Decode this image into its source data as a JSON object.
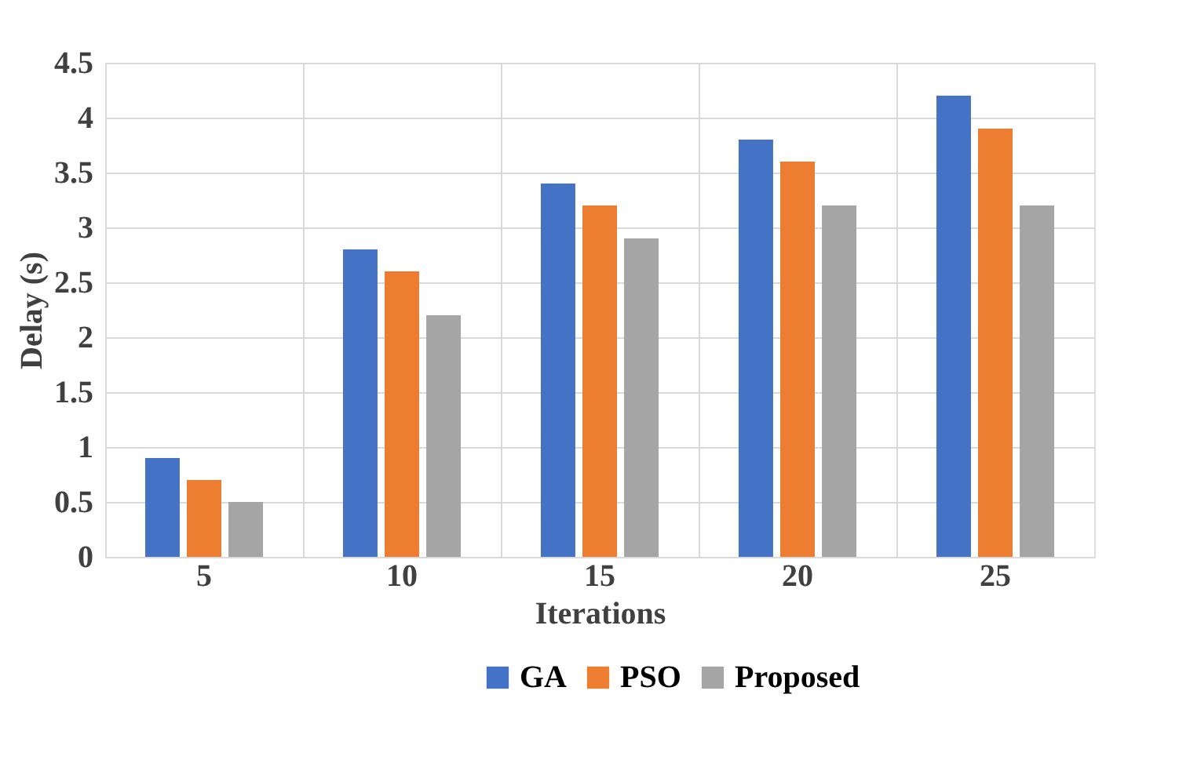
{
  "chart_data": {
    "type": "bar",
    "xlabel": "Iterations",
    "ylabel": "Delay (s)",
    "categories": [
      "5",
      "10",
      "15",
      "20",
      "25"
    ],
    "series": [
      {
        "name": "GA",
        "color": "#4472c4",
        "values": [
          0.9,
          2.8,
          3.4,
          3.8,
          4.2
        ]
      },
      {
        "name": "PSO",
        "color": "#ed7d31",
        "values": [
          0.7,
          2.6,
          3.2,
          3.6,
          3.9
        ]
      },
      {
        "name": "Proposed",
        "color": "#a5a5a5",
        "values": [
          0.5,
          2.2,
          2.9,
          3.2,
          3.2
        ]
      }
    ],
    "ylim": [
      0,
      4.5
    ],
    "yticks": [
      0,
      0.5,
      1,
      1.5,
      2,
      2.5,
      3,
      3.5,
      4,
      4.5
    ],
    "grid": true,
    "legend": "bottom"
  }
}
